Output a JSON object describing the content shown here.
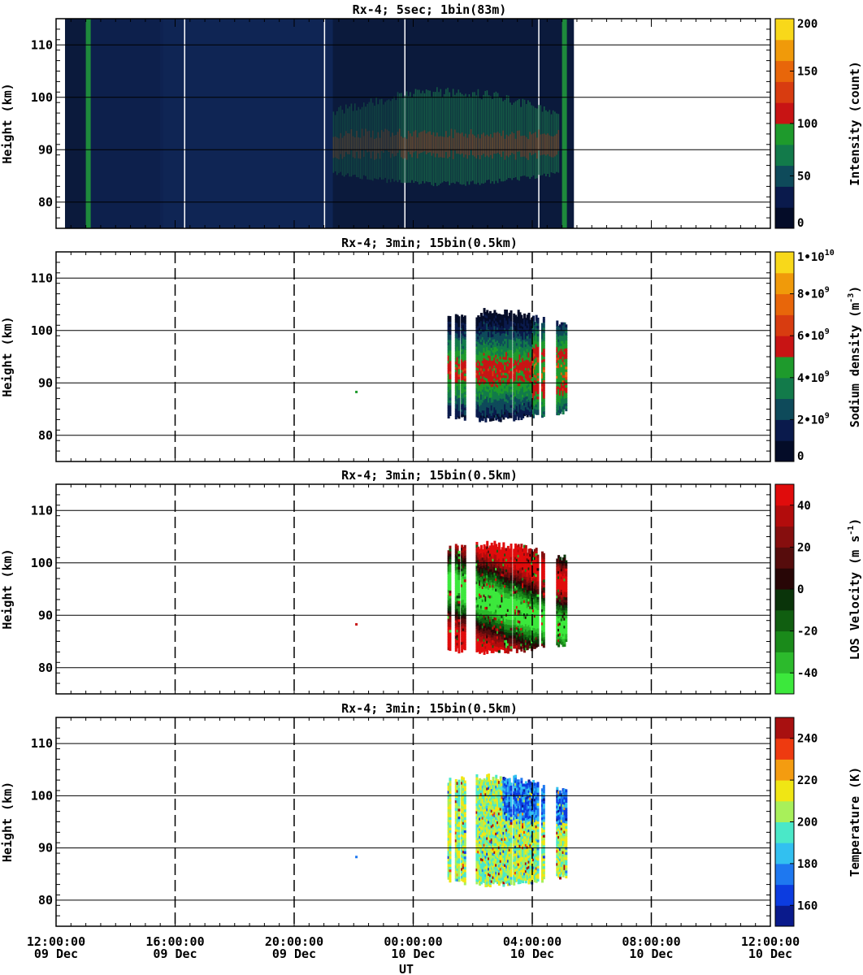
{
  "chart_data": {
    "type": "heatmap",
    "x_unit": "UT",
    "x_range": [
      "2009-12-09T12:00:00",
      "2009-12-10T12:00:00"
    ],
    "x_ticks": [
      {
        "time": "12:00:00",
        "date": "09 Dec"
      },
      {
        "time": "16:00:00",
        "date": "09 Dec"
      },
      {
        "time": "20:00:00",
        "date": "09 Dec"
      },
      {
        "time": "00:00:00",
        "date": "10 Dec"
      },
      {
        "time": "04:00:00",
        "date": "10 Dec"
      },
      {
        "time": "08:00:00",
        "date": "10 Dec"
      },
      {
        "time": "12:00:00",
        "date": "10 Dec"
      }
    ],
    "x_label": "UT",
    "y_label": "Height (km)",
    "y_range": [
      75,
      115
    ],
    "y_ticks": [
      80,
      90,
      100,
      110
    ],
    "panels": [
      {
        "title": "Rx-4;  5sec; 1bin(83m)",
        "quantity": "Intensity (count)",
        "colorbar_label": "Intensity (count)",
        "colorbar_ticks": [
          "0",
          "50",
          "100",
          "150",
          "200"
        ],
        "colorbar_range": [
          0,
          200
        ],
        "colorbar_colors": [
          "#040c28",
          "#0a1a4c",
          "#0e4a5a",
          "#127a4a",
          "#1e9a2c",
          "#c81414",
          "#d83c10",
          "#e8660a",
          "#f09a0a",
          "#f8d81a"
        ],
        "data_span_hours": [
          12.0,
          7.4
        ],
        "layer_km": [
          84,
          99
        ]
      },
      {
        "title": "Rx-4; 3min; 15bin(0.5km)",
        "quantity": "Sodium density (m^-3)",
        "colorbar_label": "Sodium density (m",
        "colorbar_label_exp": "-3",
        "colorbar_label_end": ")",
        "colorbar_ticks": [
          {
            "base": "0",
            "exp": ""
          },
          {
            "base": "2•10",
            "exp": "9"
          },
          {
            "base": "4•10",
            "exp": "9"
          },
          {
            "base": "6•10",
            "exp": "9"
          },
          {
            "base": "8•10",
            "exp": "9"
          },
          {
            "base": "1•10",
            "exp": "10"
          }
        ],
        "colorbar_range": [
          0,
          10000000000.0
        ],
        "colorbar_colors": [
          "#040c28",
          "#0a1a4c",
          "#0e4a5a",
          "#127a4a",
          "#1e9a2c",
          "#c81414",
          "#d83c10",
          "#e8660a",
          "#f09a0a",
          "#f8d81a"
        ],
        "data_span_hours": [
          22.8,
          7.2
        ],
        "layer_km": [
          85,
          101
        ]
      },
      {
        "title": "Rx-4; 3min; 15bin(0.5km)",
        "quantity": "LOS Velocity (m s^-1)",
        "colorbar_label": "LOS Velocity (m s",
        "colorbar_label_exp": "-1",
        "colorbar_label_end": ")",
        "colorbar_ticks": [
          "-40",
          "-20",
          "0",
          "20",
          "40"
        ],
        "colorbar_range": [
          -50,
          50
        ],
        "colorbar_colors": [
          "#3ce83c",
          "#2cba2c",
          "#1a8a1a",
          "#105e10",
          "#0a340a",
          "#280606",
          "#560c0c",
          "#860e0e",
          "#b20c0c",
          "#e00c0c"
        ],
        "data_span_hours": [
          22.8,
          7.2
        ],
        "layer_km": [
          85,
          101
        ]
      },
      {
        "title": "Rx-4; 3min; 15bin(0.5km)",
        "quantity": "Temperature (K)",
        "colorbar_label": "Temperature (K)",
        "colorbar_ticks": [
          "160",
          "180",
          "200",
          "220",
          "240"
        ],
        "colorbar_range": [
          150,
          250
        ],
        "colorbar_colors": [
          "#0a1a8c",
          "#0c3ce0",
          "#1e78f0",
          "#32c0f0",
          "#4ae8c8",
          "#a8f05a",
          "#f0e614",
          "#f49c10",
          "#ee3a10",
          "#a81010"
        ],
        "data_span_hours": [
          22.8,
          7.2
        ],
        "layer_km": [
          85,
          101
        ]
      }
    ]
  }
}
